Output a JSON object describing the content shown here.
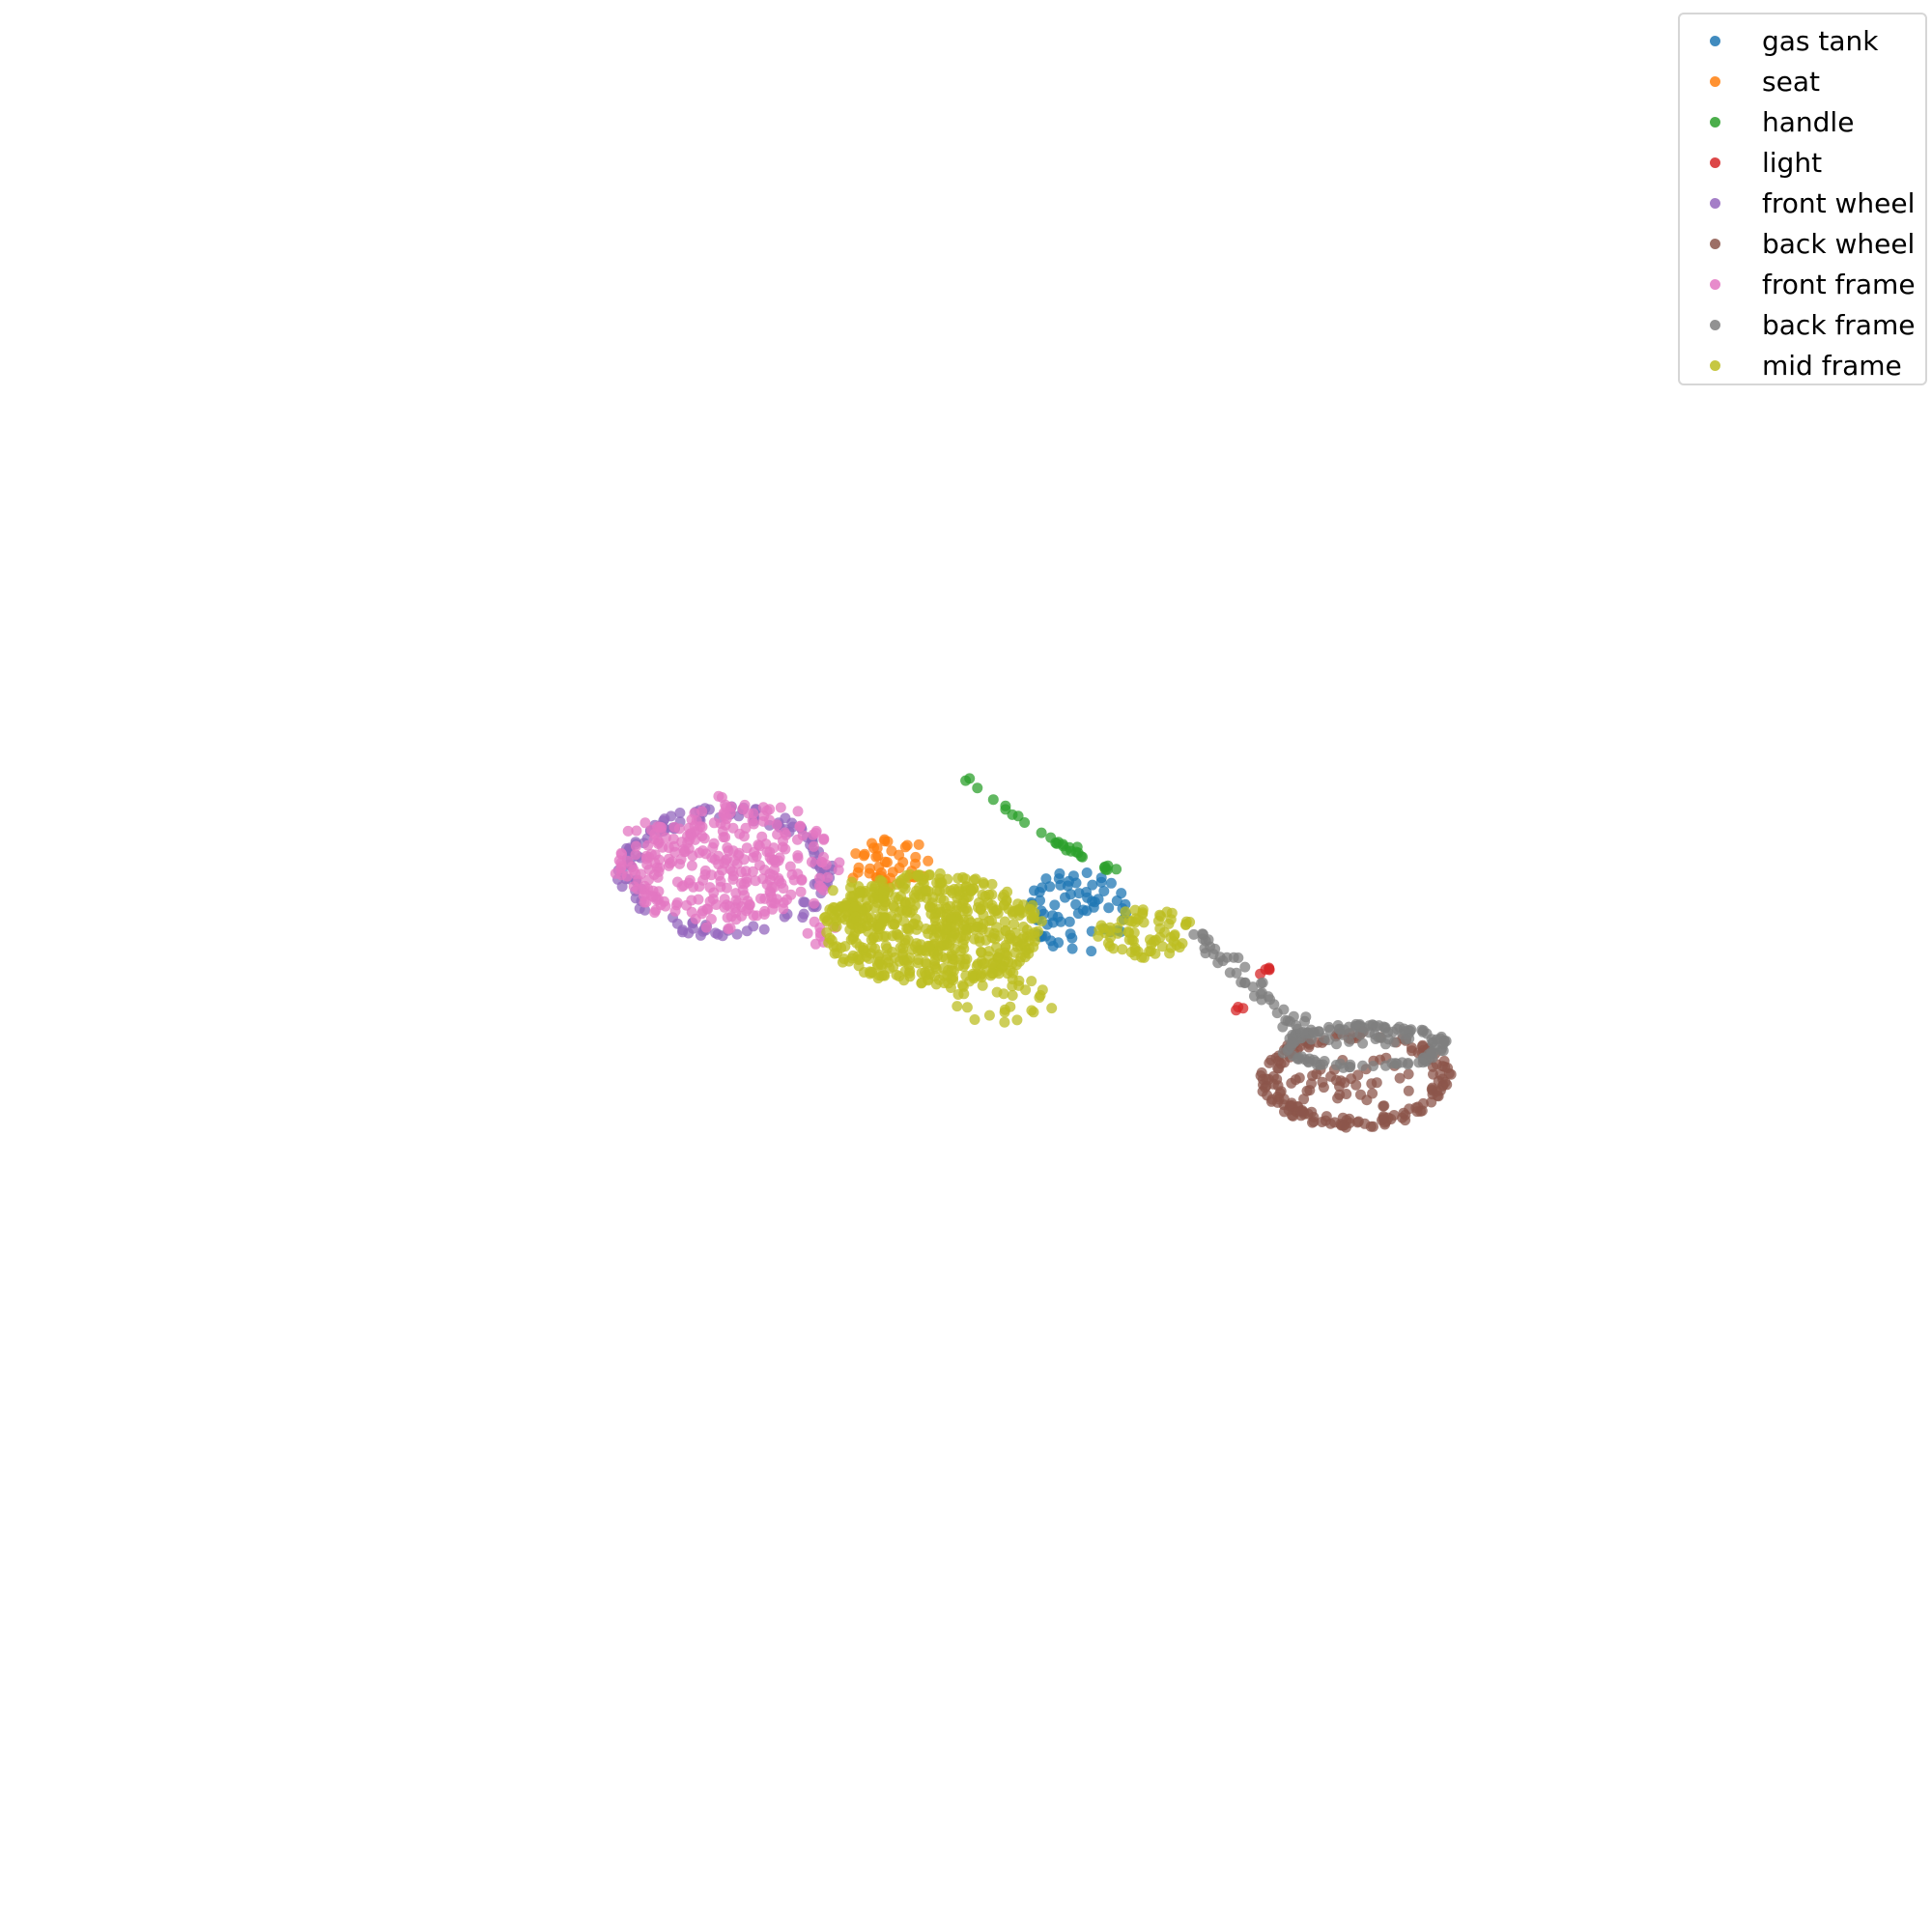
{
  "chart_data": {
    "type": "scatter",
    "title": "",
    "xlabel": "",
    "ylabel": "",
    "axes_visible": false,
    "grid": false,
    "legend_position": "top-right",
    "marker_alpha": 0.75,
    "series": [
      {
        "name": "gas tank",
        "color": "#1f77b4",
        "clusters": [
          {
            "cx": 1118,
            "cy": 942,
            "rx": 54,
            "ry": 46,
            "n": 70
          }
        ]
      },
      {
        "name": "seat",
        "color": "#ff7f0e",
        "clusters": [
          {
            "cx": 920,
            "cy": 893,
            "rx": 48,
            "ry": 26,
            "n": 45
          }
        ]
      },
      {
        "name": "handle",
        "color": "#2ca02c",
        "clusters": [
          {
            "line": [
              [
                988,
                797
              ],
              [
                1062,
                851
              ],
              [
                1102,
                877
              ],
              [
                1140,
                893
              ],
              [
                1158,
                905
              ]
            ],
            "jitter": 4,
            "n": 30
          }
        ]
      },
      {
        "name": "light",
        "color": "#d62728",
        "clusters": [
          {
            "cx": 1306,
            "cy": 1004,
            "rx": 12,
            "ry": 5,
            "n": 5
          },
          {
            "cx": 1286,
            "cy": 1044,
            "rx": 8,
            "ry": 4,
            "n": 3
          }
        ]
      },
      {
        "name": "front wheel",
        "color": "#9467bd",
        "clusters": [
          {
            "ring": true,
            "cx": 752,
            "cy": 903,
            "rx": 108,
            "ry": 65,
            "n": 130
          }
        ]
      },
      {
        "name": "back wheel",
        "color": "#8c564b",
        "clusters": [
          {
            "ring": true,
            "cx": 1403,
            "cy": 1117,
            "rx": 95,
            "ry": 48,
            "n": 170
          },
          {
            "cx": 1403,
            "cy": 1120,
            "rx": 70,
            "ry": 28,
            "n": 40
          }
        ]
      },
      {
        "name": "front frame",
        "color": "#e377c2",
        "clusters": [
          {
            "cx": 752,
            "cy": 895,
            "rx": 100,
            "ry": 57,
            "n": 260
          },
          {
            "ring": true,
            "cx": 752,
            "cy": 893,
            "rx": 112,
            "ry": 66,
            "n": 60
          },
          {
            "cx": 845,
            "cy": 963,
            "rx": 20,
            "ry": 15,
            "n": 8
          }
        ]
      },
      {
        "name": "back frame",
        "color": "#7f7f7f",
        "clusters": [
          {
            "line": [
              [
                1235,
                965
              ],
              [
                1262,
                988
              ],
              [
                1295,
                1017
              ],
              [
                1330,
                1052
              ],
              [
                1360,
                1068
              ]
            ],
            "jitter": 12,
            "n": 45
          },
          {
            "ring": true,
            "cx": 1412,
            "cy": 1083,
            "rx": 85,
            "ry": 22,
            "n": 110
          },
          {
            "cx": 1410,
            "cy": 1072,
            "rx": 60,
            "ry": 12,
            "n": 30
          }
        ]
      },
      {
        "name": "mid frame",
        "color": "#bcbd22",
        "clusters": [
          {
            "cx": 965,
            "cy": 962,
            "rx": 115,
            "ry": 58,
            "n": 550
          },
          {
            "cx": 1040,
            "cy": 1032,
            "rx": 60,
            "ry": 30,
            "n": 40
          },
          {
            "cx": 1185,
            "cy": 966,
            "rx": 52,
            "ry": 26,
            "n": 70
          },
          {
            "cx": 890,
            "cy": 940,
            "rx": 40,
            "ry": 28,
            "n": 40
          }
        ]
      }
    ]
  }
}
